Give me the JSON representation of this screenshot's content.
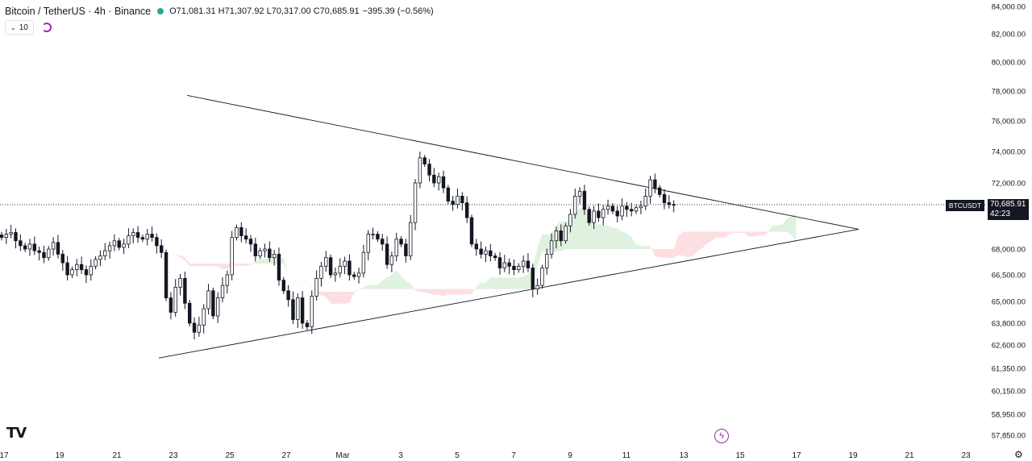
{
  "legend": {
    "symbol": "Bitcoin / TetherUS · 4h · Binance",
    "ohlc": "O71,081.31 H71,307.92 L70,317.00 C70,685.91",
    "change": "−395.39 (−0.56%)",
    "dot_color": "#22ab94"
  },
  "indicator": {
    "value": "10",
    "chevron_icon": "chevron-down-icon",
    "loader_icon": "loading-icon"
  },
  "logo": "TV",
  "price_tag": {
    "symbol": "BTCUSDT",
    "price": "70,685.91",
    "countdown": "42:23"
  },
  "icons": {
    "flash": "flash-icon",
    "settings": "gear-icon"
  },
  "chart_data": {
    "type": "candlestick",
    "title": "",
    "last_price": 70685.91,
    "y_ticks": [
      {
        "value": 84000,
        "label": "84,000.00"
      },
      {
        "value": 82000,
        "label": "82,000.00"
      },
      {
        "value": 80000,
        "label": "80,000.00"
      },
      {
        "value": 78000,
        "label": "78,000.00"
      },
      {
        "value": 76000,
        "label": "76,000.00"
      },
      {
        "value": 74000,
        "label": "74,000.00"
      },
      {
        "value": 72000,
        "label": "72,000.00"
      },
      {
        "value": 70000,
        "label": "70,000.00"
      },
      {
        "value": 68000,
        "label": "68,000.00"
      },
      {
        "value": 66500,
        "label": "66,500.00"
      },
      {
        "value": 65000,
        "label": "65,000.00"
      },
      {
        "value": 63800,
        "label": "63,800.00"
      },
      {
        "value": 62600,
        "label": "62,600.00"
      },
      {
        "value": 61350,
        "label": "61,350.00"
      },
      {
        "value": 60150,
        "label": "60,150.00"
      },
      {
        "value": 58950,
        "label": "58,950.00"
      },
      {
        "value": 57850,
        "label": "57,850.00"
      }
    ],
    "x_ticks": [
      "17",
      "19",
      "21",
      "23",
      "25",
      "27",
      "Mar",
      "3",
      "5",
      "7",
      "9",
      "11",
      "13",
      "15",
      "17",
      "19",
      "21",
      "23"
    ],
    "closes": [
      68700,
      68900,
      69000,
      68500,
      68200,
      68000,
      68300,
      67900,
      67800,
      67500,
      68000,
      68400,
      67700,
      67200,
      66500,
      66800,
      67100,
      66800,
      66500,
      67000,
      67400,
      67600,
      67900,
      68200,
      68500,
      68100,
      68300,
      68800,
      69000,
      68700,
      68600,
      68900,
      68700,
      68200,
      67800,
      65200,
      64400,
      65800,
      66300,
      64900,
      63800,
      63300,
      63700,
      64600,
      65600,
      64200,
      65200,
      65900,
      66500,
      68700,
      69300,
      68800,
      68600,
      68300,
      67600,
      67900,
      68000,
      67500,
      67700,
      66200,
      65600,
      65100,
      64000,
      65200,
      63800,
      63600,
      65300,
      66300,
      67000,
      67500,
      66500,
      66600,
      67000,
      67300,
      66500,
      66400,
      66600,
      67800,
      68900,
      68900,
      68600,
      68300,
      67100,
      67600,
      68600,
      68300,
      67600,
      69600,
      72000,
      73600,
      73200,
      72500,
      72000,
      72400,
      71700,
      70900,
      70700,
      71200,
      70800,
      69900,
      68300,
      68000,
      67700,
      67900,
      67600,
      67500,
      66900,
      67200,
      67000,
      66800,
      67000,
      67300,
      66900,
      65700,
      65900,
      66900,
      67700,
      68500,
      69100,
      68500,
      69400,
      70100,
      71200,
      71500,
      70400,
      69600,
      70300,
      69900,
      70400,
      70600,
      70300,
      70000,
      70600,
      70400,
      70300,
      70500,
      70600,
      71200,
      72200,
      71700,
      71300,
      70800,
      70700,
      70686
    ],
    "triangle": {
      "upper": [
        {
          "i": 0.28,
          "price": 77710
        },
        {
          "i": 1.0,
          "price": 69200
        }
      ],
      "lower": [
        {
          "i": 0.16,
          "price": 61900
        },
        {
          "i": 1.0,
          "price": 69200
        }
      ]
    }
  }
}
